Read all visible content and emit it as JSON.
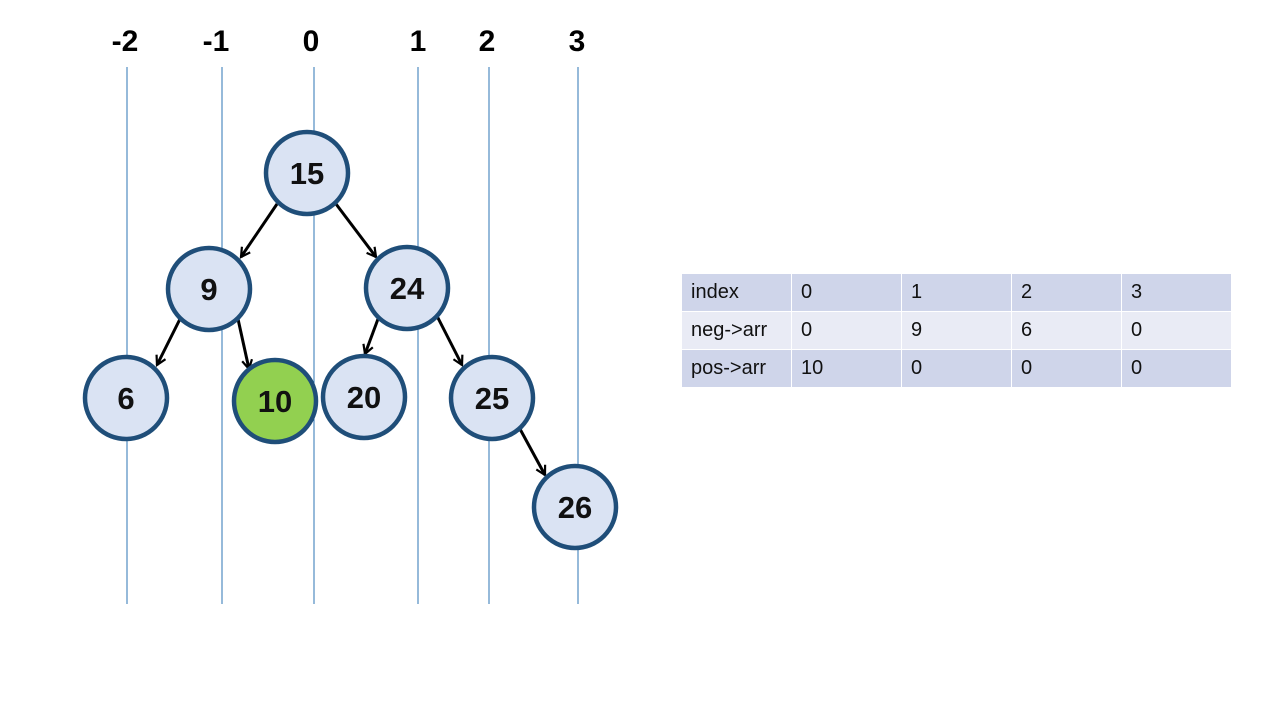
{
  "columns": [
    "-2",
    "-1",
    "0",
    "1",
    "2",
    "3"
  ],
  "colors": {
    "node_fill": "#dae3f3",
    "node_stroke": "#1f4e79",
    "highlight_fill": "#92d050",
    "guide_line": "#2e74b5",
    "edge": "#000000"
  },
  "tree": {
    "nodes": [
      {
        "id": "n15",
        "value": "15",
        "highlight": false
      },
      {
        "id": "n9",
        "value": "9",
        "highlight": false
      },
      {
        "id": "n24",
        "value": "24",
        "highlight": false
      },
      {
        "id": "n6",
        "value": "6",
        "highlight": false
      },
      {
        "id": "n10",
        "value": "10",
        "highlight": true
      },
      {
        "id": "n20",
        "value": "20",
        "highlight": false
      },
      {
        "id": "n25",
        "value": "25",
        "highlight": false
      },
      {
        "id": "n26",
        "value": "26",
        "highlight": false
      }
    ],
    "edges": [
      {
        "from": "n15",
        "to": "n9"
      },
      {
        "from": "n15",
        "to": "n24"
      },
      {
        "from": "n9",
        "to": "n6"
      },
      {
        "from": "n9",
        "to": "n10"
      },
      {
        "from": "n24",
        "to": "n20"
      },
      {
        "from": "n24",
        "to": "n25"
      },
      {
        "from": "n25",
        "to": "n26"
      }
    ]
  },
  "table": {
    "rows": [
      [
        "index",
        "0",
        "1",
        "2",
        "3"
      ],
      [
        "neg->arr",
        "0",
        "9",
        "6",
        "0"
      ],
      [
        "pos->arr",
        "10",
        "0",
        "0",
        "0"
      ]
    ]
  }
}
